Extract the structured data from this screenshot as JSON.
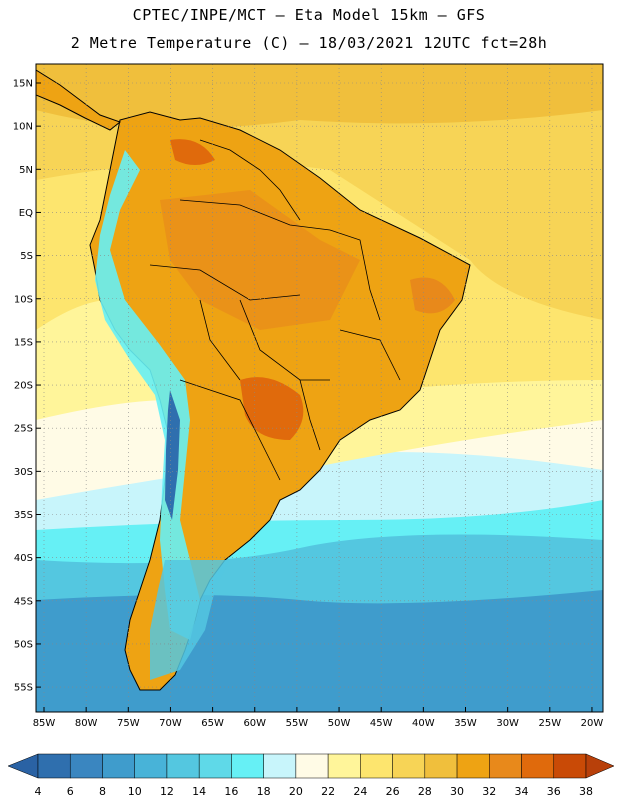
{
  "title_line1": "CPTEC/INPE/MCT –  Eta Model 15km – GFS",
  "title_line2": "2 Metre Temperature (C) – 18/03/2021 12UTC fct=28h",
  "lat_labels": [
    "15N",
    "10N",
    "5N",
    "EQ",
    "5S",
    "10S",
    "15S",
    "20S",
    "25S",
    "30S",
    "35S",
    "40S",
    "45S",
    "50S",
    "55S"
  ],
  "lat_values": [
    15,
    10,
    5,
    0,
    -5,
    -10,
    -15,
    -20,
    -25,
    -30,
    -35,
    -40,
    -45,
    -50,
    -55
  ],
  "lon_labels": [
    "85W",
    "80W",
    "75W",
    "70W",
    "65W",
    "60W",
    "55W",
    "50W",
    "45W",
    "40W",
    "35W",
    "30W",
    "25W",
    "20W"
  ],
  "lon_values": [
    -85,
    -80,
    -75,
    -70,
    -65,
    -60,
    -55,
    -50,
    -45,
    -40,
    -35,
    -30,
    -25,
    -20
  ],
  "colorbar": {
    "labels": [
      "4",
      "6",
      "8",
      "10",
      "12",
      "14",
      "16",
      "18",
      "20",
      "22",
      "24",
      "26",
      "28",
      "30",
      "32",
      "34",
      "36",
      "38"
    ],
    "colors": [
      "#2f6fae",
      "#3a86c0",
      "#3f9ccc",
      "#48b3d8",
      "#54c7e0",
      "#5fd9e8",
      "#66f0f5",
      "#c8f5fb",
      "#fffbe6",
      "#fff59a",
      "#fde56e",
      "#f7d456",
      "#f0bf3c",
      "#eea313",
      "#e8891b",
      "#e06a0c",
      "#c94a06"
    ],
    "under_color": "#2a62a4",
    "over_color": "#b8400a"
  },
  "legend_values": [
    4,
    6,
    8,
    10,
    12,
    14,
    16,
    18,
    20,
    22,
    24,
    26,
    28,
    30,
    32,
    34,
    36,
    38
  ],
  "map_colors": {
    "ocean_south": "#3f9ccc",
    "ocean_mid": "#66f0f5",
    "ocean_warm": "#f7d456",
    "land_hot": "#eea313",
    "land_hotter": "#e8891b",
    "land_hottest": "#e06a0c",
    "andes": "#66f0f5",
    "andes_cold": "#2f6fae",
    "coast": "#000000"
  }
}
